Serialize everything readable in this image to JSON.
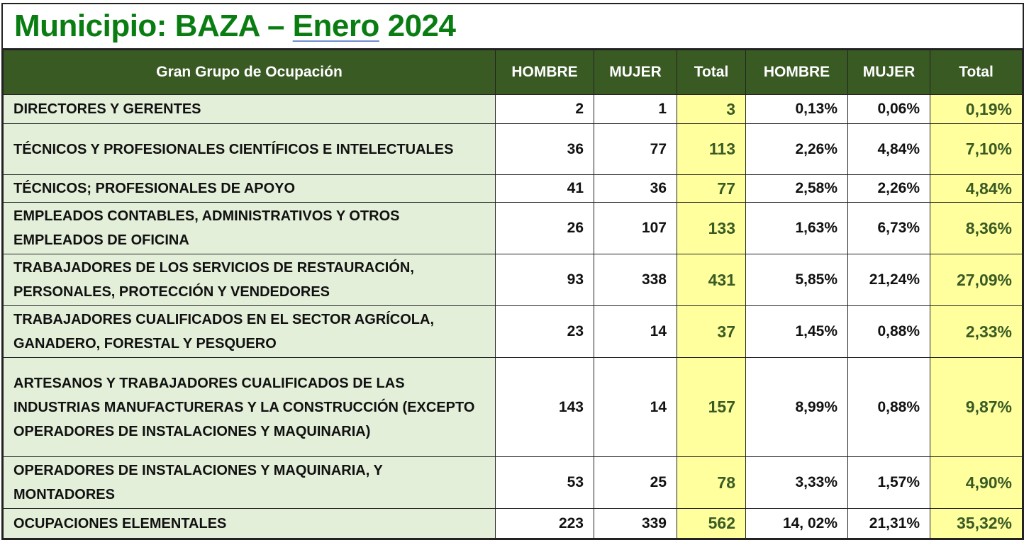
{
  "title": {
    "prefix": "Municipio: BAZA – ",
    "month": "Enero",
    "year": " 2024"
  },
  "headers": [
    "Gran Grupo de Ocupación",
    "HOMBRE",
    "MUJER",
    "Total",
    "HOMBRE",
    "MUJER",
    "Total"
  ],
  "rows": [
    {
      "label": "DIRECTORES Y GERENTES",
      "h": "2",
      "m": "1",
      "t": "3",
      "hp": "0,13%",
      "mp": "0,06%",
      "tp": "0,19%"
    },
    {
      "label": "TÉCNICOS Y PROFESIONALES CIENTÍFICOS E INTELECTUALES",
      "h": "36",
      "m": "77",
      "t": "113",
      "hp": "2,26%",
      "mp": "4,84%",
      "tp": "7,10%"
    },
    {
      "label": "TÉCNICOS; PROFESIONALES DE APOYO",
      "h": "41",
      "m": "36",
      "t": "77",
      "hp": "2,58%",
      "mp": "2,26%",
      "tp": "4,84%"
    },
    {
      "label": "EMPLEADOS CONTABLES, ADMINISTRATIVOS Y OTROS EMPLEADOS DE OFICINA",
      "h": "26",
      "m": "107",
      "t": "133",
      "hp": "1,63%",
      "mp": "6,73%",
      "tp": "8,36%"
    },
    {
      "label": "TRABAJADORES DE LOS SERVICIOS DE RESTAURACIÓN, PERSONALES, PROTECCIÓN Y VENDEDORES",
      "h": "93",
      "m": "338",
      "t": "431",
      "hp": "5,85%",
      "mp": "21,24%",
      "tp": "27,09%"
    },
    {
      "label": "TRABAJADORES CUALIFICADOS EN EL SECTOR AGRÍCOLA, GANADERO, FORESTAL Y PESQUERO",
      "h": "23",
      "m": "14",
      "t": "37",
      "hp": "1,45%",
      "mp": "0,88%",
      "tp": "2,33%"
    },
    {
      "label": "ARTESANOS Y TRABAJADORES CUALIFICADOS DE LAS INDUSTRIAS MANUFACTURERAS Y LA CONSTRUCCIÓN (EXCEPTO OPERADORES DE INSTALACIONES Y MAQUINARIA)",
      "h": "143",
      "m": "14",
      "t": "157",
      "hp": "8,99%",
      "mp": "0,88%",
      "tp": "9,87%"
    },
    {
      "label": "OPERADORES DE INSTALACIONES Y MAQUINARIA, Y MONTADORES",
      "h": "53",
      "m": "25",
      "t": "78",
      "hp": "3,33%",
      "mp": "1,57%",
      "tp": "4,90%"
    },
    {
      "label": "OCUPACIONES ELEMENTALES",
      "h": "223",
      "m": "339",
      "t": "562",
      "hp": "14, 02%",
      "mp": "21,31%",
      "tp": "35,32%"
    }
  ],
  "colors": {
    "title": "#0a7d12",
    "header_bg": "#3a5a24",
    "label_bg": "#e3efd9",
    "total_bg": "#ffff9e",
    "total_text": "#3a5a24"
  }
}
